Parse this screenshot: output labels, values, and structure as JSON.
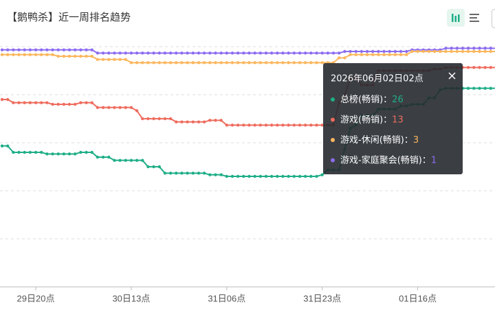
{
  "header": {
    "title": "【鹅鸭杀】近一周排名趋势"
  },
  "chart_data": {
    "type": "line",
    "categories": [
      null,
      null,
      null,
      null,
      null,
      null,
      "29日20点",
      null,
      null,
      null,
      null,
      null,
      null,
      null,
      null,
      null,
      null,
      null,
      null,
      null,
      null,
      null,
      null,
      "30日13点",
      null,
      null,
      null,
      null,
      null,
      null,
      null,
      null,
      null,
      null,
      null,
      null,
      null,
      null,
      null,
      null,
      "31日06点",
      null,
      null,
      null,
      null,
      null,
      null,
      null,
      null,
      null,
      null,
      null,
      null,
      null,
      null,
      null,
      null,
      "31日23点",
      null,
      null,
      null,
      null,
      null,
      null,
      null,
      null,
      null,
      null,
      null,
      null,
      null,
      null,
      null,
      null,
      "01日16点",
      null,
      null,
      null,
      null,
      null,
      null,
      null,
      null,
      null,
      null,
      null,
      null,
      null,
      null
    ],
    "ylim": [
      0,
      150
    ],
    "yticks": [
      0,
      30,
      60,
      90,
      120,
      150
    ],
    "y_inverted": true,
    "grid": true,
    "series": [
      {
        "name": "总榜(畅销)",
        "color": "#1fae87",
        "values": [
          62,
          62,
          66,
          66,
          66,
          66,
          66,
          66,
          67,
          67,
          67,
          67,
          67,
          67,
          66,
          66,
          66,
          69,
          69,
          69,
          71,
          71,
          71,
          71,
          71,
          71,
          75,
          75,
          75,
          79,
          79,
          79,
          79,
          79,
          79,
          79,
          79,
          80,
          80,
          80,
          81,
          81,
          81,
          81,
          81,
          81,
          81,
          81,
          81,
          81,
          81,
          81,
          81,
          81,
          81,
          81,
          81,
          80,
          77,
          77,
          77,
          64,
          51,
          49,
          43,
          43,
          43,
          39,
          39,
          39,
          39,
          37,
          37,
          36,
          36,
          36,
          32,
          32,
          27,
          26,
          26,
          26,
          26,
          26,
          26,
          26,
          26,
          26,
          26
        ]
      },
      {
        "name": "游戏(畅销)",
        "color": "#ee6c5e",
        "values": [
          33,
          33,
          35,
          35,
          35,
          35,
          35,
          35,
          35,
          36,
          36,
          36,
          36,
          36,
          35,
          35,
          35,
          38,
          38,
          38,
          38,
          38,
          38,
          38,
          40,
          45,
          45,
          45,
          45,
          45,
          45,
          47,
          47,
          47,
          47,
          47,
          47,
          46,
          46,
          46,
          49,
          49,
          49,
          49,
          49,
          49,
          49,
          49,
          49,
          49,
          49,
          49,
          49,
          49,
          49,
          49,
          49,
          49,
          49,
          49,
          35,
          30,
          20,
          19,
          24,
          24,
          24,
          15,
          15,
          15,
          15,
          15,
          15,
          15,
          15,
          15,
          15,
          14,
          14,
          13,
          13,
          13,
          13,
          13,
          13,
          13,
          13,
          13,
          13
        ]
      },
      {
        "name": "游戏-休闲(畅销)",
        "color": "#fbb65d",
        "values": [
          5,
          5,
          5,
          5,
          5,
          5,
          5,
          5,
          5,
          5,
          6,
          6,
          6,
          6,
          6,
          6,
          6,
          8,
          8,
          8,
          8,
          8,
          8,
          10,
          10,
          10,
          10,
          10,
          10,
          10,
          10,
          10,
          10,
          10,
          10,
          10,
          10,
          10,
          10,
          10,
          10,
          10,
          10,
          10,
          10,
          10,
          10,
          10,
          10,
          10,
          10,
          10,
          10,
          10,
          10,
          10,
          10,
          10,
          10,
          10,
          7,
          7,
          5,
          5,
          5,
          5,
          5,
          5,
          5,
          5,
          5,
          5,
          5,
          3,
          3,
          3,
          3,
          3,
          3,
          3,
          3,
          3,
          3,
          3,
          3,
          3,
          3,
          3,
          3
        ]
      },
      {
        "name": "游戏-家庭聚会(畅销)",
        "color": "#8c6cf0",
        "values": [
          2,
          2,
          2,
          2,
          2,
          2,
          2,
          2,
          2,
          2,
          2,
          2,
          2,
          2,
          2,
          2,
          2,
          4,
          4,
          4,
          4,
          4,
          4,
          4,
          4,
          4,
          4,
          4,
          4,
          4,
          4,
          4,
          4,
          4,
          4,
          4,
          4,
          4,
          4,
          4,
          4,
          4,
          4,
          4,
          4,
          4,
          4,
          4,
          4,
          4,
          4,
          4,
          4,
          4,
          4,
          4,
          4,
          4,
          4,
          4,
          4,
          3,
          3,
          3,
          3,
          3,
          3,
          3,
          3,
          3,
          3,
          3,
          3,
          2,
          2,
          2,
          2,
          2,
          2,
          1,
          1,
          1,
          1,
          1,
          1,
          1,
          1,
          1,
          1
        ]
      }
    ],
    "tooltip": {
      "title": "2026年06月02日02点",
      "index": 84,
      "separator": "："
    }
  }
}
